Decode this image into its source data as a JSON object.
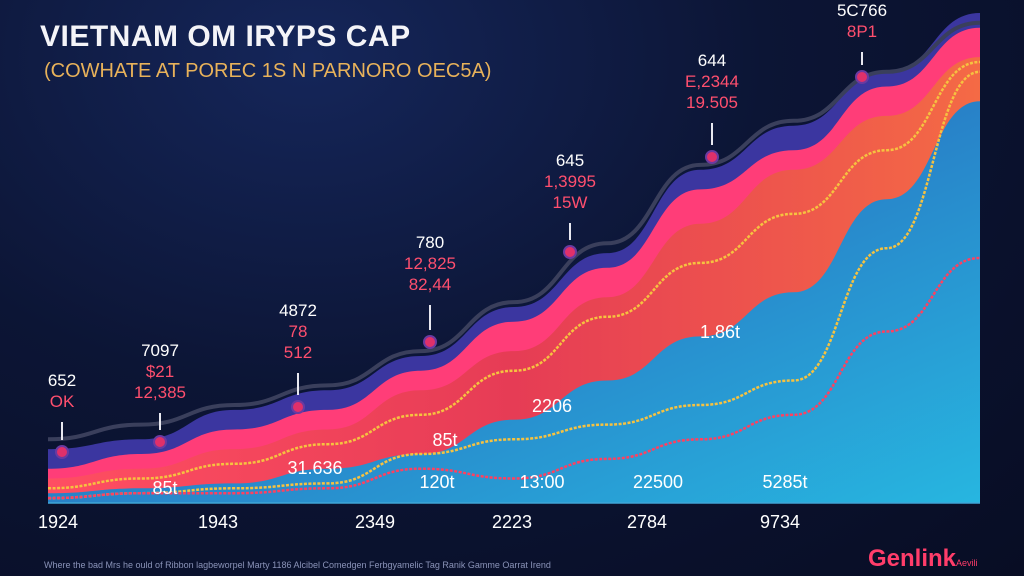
{
  "header": {
    "title": "VIETNAM OM IRYPS CAP",
    "subtitle": "(COWHATE AT POREC 1S N PARNORO OEC5A)"
  },
  "chart_data": {
    "type": "area",
    "title": "VIETNAM OM IRYPS CAP",
    "subtitle": "(COWHATE AT POREC 1S N PARNORO OEC5A)",
    "xlabel": "",
    "ylabel": "",
    "x_tick_labels": [
      "1924",
      "1943",
      "2349",
      "2223",
      "2784",
      "9734"
    ],
    "ylim": [
      0,
      100
    ],
    "grid": false,
    "legend": "none",
    "x": [
      0,
      1,
      2,
      3,
      4,
      5,
      6,
      7,
      8,
      9,
      10
    ],
    "areas": [
      {
        "values": [
          11,
          13,
          19,
          23,
          30,
          40,
          51,
          68,
          77,
          88,
          100
        ],
        "color": "#3d3aa8"
      },
      {
        "values": [
          7,
          10,
          15,
          19,
          27,
          37,
          48,
          64,
          72,
          85,
          97
        ],
        "color": "#ff3d7a"
      },
      {
        "values": [
          5,
          7,
          11,
          15,
          23,
          31,
          42,
          57,
          68,
          79,
          91
        ],
        "color": "#ec4a50"
      },
      {
        "values": [
          2,
          3,
          4,
          7,
          10,
          17,
          25,
          34,
          43,
          62,
          82
        ],
        "color": "#2f6fc0"
      }
    ],
    "lines": [
      {
        "values": [
          13,
          16,
          20,
          24,
          31,
          41,
          53,
          69,
          78,
          88,
          98
        ],
        "color": "#3a3f5c"
      },
      {
        "values": [
          3,
          5,
          8,
          12,
          18,
          27,
          38,
          49,
          59,
          72,
          90
        ],
        "color": "#f6c240"
      },
      {
        "values": [
          1,
          2,
          3,
          4,
          10,
          13,
          16,
          20,
          25,
          52,
          88
        ],
        "color": "#f6c240"
      },
      {
        "values": [
          1,
          2,
          2,
          3,
          7,
          5,
          9,
          13,
          18,
          35,
          50
        ],
        "color": "#ff4060"
      }
    ],
    "annotations": [
      {
        "lines": [
          "652",
          "OK",
          ""
        ]
      },
      {
        "lines": [
          "7097",
          "$21",
          "12,385"
        ]
      },
      {
        "lines": [
          "4872",
          "78",
          "512"
        ]
      },
      {
        "lines": [
          "780",
          "12,825",
          "82,44"
        ]
      },
      {
        "lines": [
          "645",
          "1,3995",
          "15W"
        ]
      },
      {
        "lines": [
          "644",
          "E,2344",
          "19.505"
        ]
      },
      {
        "lines": [
          "5C766",
          "8P1",
          ""
        ]
      }
    ],
    "inner_labels": [
      "85t",
      "31.636",
      "85t",
      "120t",
      "2206",
      "1.86t",
      "13:00",
      "22500",
      "5285t"
    ]
  },
  "footer": {
    "note": "Where the bad Mrs he ould of Ribbon lagbeworpel Marty 1186 Alcibel Comedgen Ferbgyamelic Tag Ranik Gamme Oarrat Irend",
    "logo": "Genlink",
    "logo_suffix": "Aevili"
  }
}
